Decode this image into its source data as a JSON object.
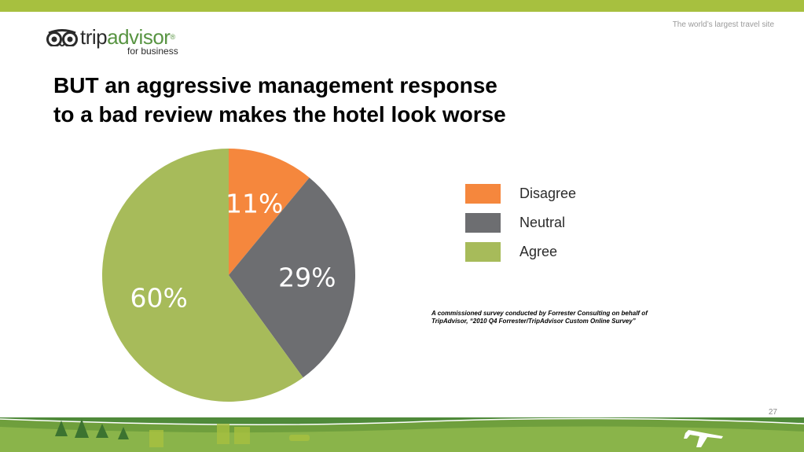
{
  "header": {
    "tagline": "The world’s largest travel site",
    "logo": {
      "wordmark_part1": "trip",
      "wordmark_part2": "advisor",
      "registered": "®",
      "subtitle": "for business",
      "icon": "owl-eyes-icon"
    }
  },
  "title": {
    "line1": "BUT an aggressive management response",
    "line2": "to a bad review makes the hotel look worse"
  },
  "chart_data": {
    "type": "pie",
    "categories": [
      "Disagree",
      "Neutral",
      "Agree"
    ],
    "values": [
      11,
      29,
      60
    ],
    "labels": [
      "11%",
      "29%",
      "60%"
    ],
    "colors": [
      "#f5873d",
      "#6d6e71",
      "#a7bb5a"
    ],
    "legend_position": "right"
  },
  "footnote": "A commissioned survey conducted by Forrester Consulting on behalf of TripAdvisor, “2010 Q4 Forrester/TripAdvisor Custom Online Survey”",
  "page_number": "27",
  "colors": {
    "accent_green": "#a7c03f",
    "brand_green": "#589442",
    "footer_dark_green": "#4f8a3a"
  }
}
